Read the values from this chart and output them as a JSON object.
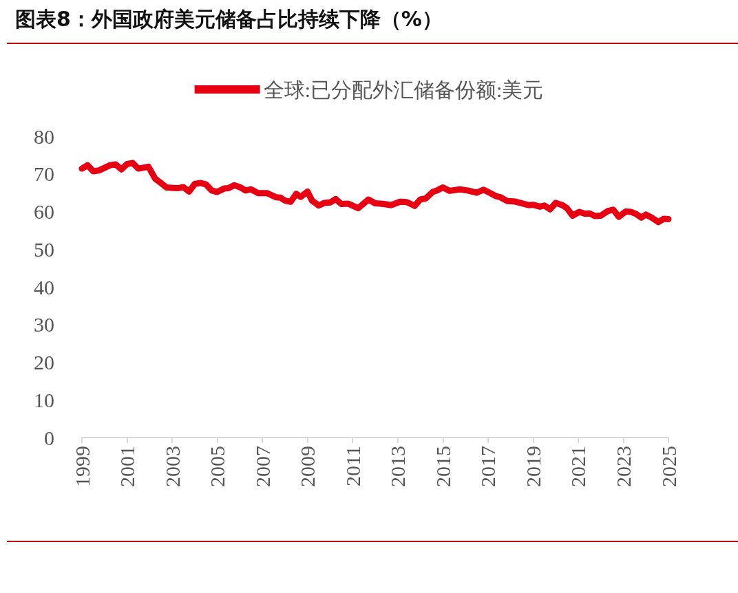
{
  "chart_data": {
    "type": "line",
    "title": "图表8：外国政府美元储备占比持续下降（%）",
    "legend": "top",
    "grid": false,
    "marker": "none",
    "line_style": "solid",
    "xlim": [
      1999,
      2025
    ],
    "xticks": [
      1999,
      2001,
      2003,
      2005,
      2007,
      2009,
      2011,
      2013,
      2015,
      2017,
      2019,
      2021,
      2023,
      2025
    ],
    "ylim": [
      0,
      80
    ],
    "yticks": [
      0,
      10,
      20,
      30,
      40,
      50,
      60,
      70,
      80
    ],
    "series": [
      {
        "name": "全球:已分配外汇储备份额:美元",
        "color": "#e60012",
        "x": [
          1999.0,
          1999.25,
          1999.5,
          1999.75,
          2000.25,
          2000.5,
          2000.75,
          2001.0,
          2001.25,
          2001.5,
          2001.95,
          2002.25,
          2002.5,
          2002.75,
          2003.25,
          2003.5,
          2003.75,
          2004.0,
          2004.25,
          2004.5,
          2004.75,
          2005.0,
          2005.3,
          2005.5,
          2005.75,
          2006.0,
          2006.25,
          2006.5,
          2006.8,
          2007.2,
          2007.6,
          2007.8,
          2008.0,
          2008.25,
          2008.5,
          2008.7,
          2009.0,
          2009.2,
          2009.5,
          2009.75,
          2010.0,
          2010.25,
          2010.5,
          2010.8,
          2011.25,
          2011.7,
          2012.0,
          2012.4,
          2012.7,
          2013.1,
          2013.4,
          2013.75,
          2014.0,
          2014.25,
          2014.55,
          2014.75,
          2015.0,
          2015.3,
          2015.75,
          2016.1,
          2016.5,
          2016.8,
          2017.0,
          2017.35,
          2017.55,
          2017.85,
          2018.15,
          2018.8,
          2019.0,
          2019.3,
          2019.5,
          2019.75,
          2020.0,
          2020.3,
          2020.5,
          2020.75,
          2021.05,
          2021.3,
          2021.5,
          2021.75,
          2022.0,
          2022.3,
          2022.55,
          2022.8,
          2023.1,
          2023.35,
          2023.55,
          2023.8,
          2024.0,
          2024.25,
          2024.55,
          2024.8,
          2025.0
        ],
        "values": [
          71.4,
          72.3,
          70.7,
          70.9,
          72.3,
          72.5,
          71.2,
          72.6,
          72.9,
          71.4,
          71.9,
          68.7,
          67.6,
          66.4,
          66.2,
          66.5,
          65.3,
          67.3,
          67.6,
          67.2,
          65.6,
          65.2,
          66.1,
          66.2,
          67.0,
          66.5,
          65.6,
          65.9,
          64.9,
          64.9,
          63.8,
          63.7,
          62.9,
          62.6,
          64.7,
          63.9,
          65.3,
          62.9,
          61.6,
          62.3,
          62.4,
          63.3,
          62.0,
          62.1,
          60.9,
          63.2,
          62.2,
          62.0,
          61.7,
          62.6,
          62.5,
          61.5,
          63.2,
          63.5,
          65.2,
          65.6,
          66.4,
          65.5,
          65.9,
          65.6,
          65.0,
          65.8,
          65.2,
          64.1,
          63.8,
          62.8,
          62.7,
          61.7,
          61.8,
          61.3,
          61.6,
          60.6,
          62.3,
          61.7,
          60.9,
          58.9,
          59.9,
          59.4,
          59.5,
          58.8,
          58.9,
          60.1,
          60.5,
          58.6,
          60.0,
          59.9,
          59.4,
          58.4,
          59.2,
          58.4,
          57.2,
          58.1,
          58.0
        ]
      }
    ]
  }
}
